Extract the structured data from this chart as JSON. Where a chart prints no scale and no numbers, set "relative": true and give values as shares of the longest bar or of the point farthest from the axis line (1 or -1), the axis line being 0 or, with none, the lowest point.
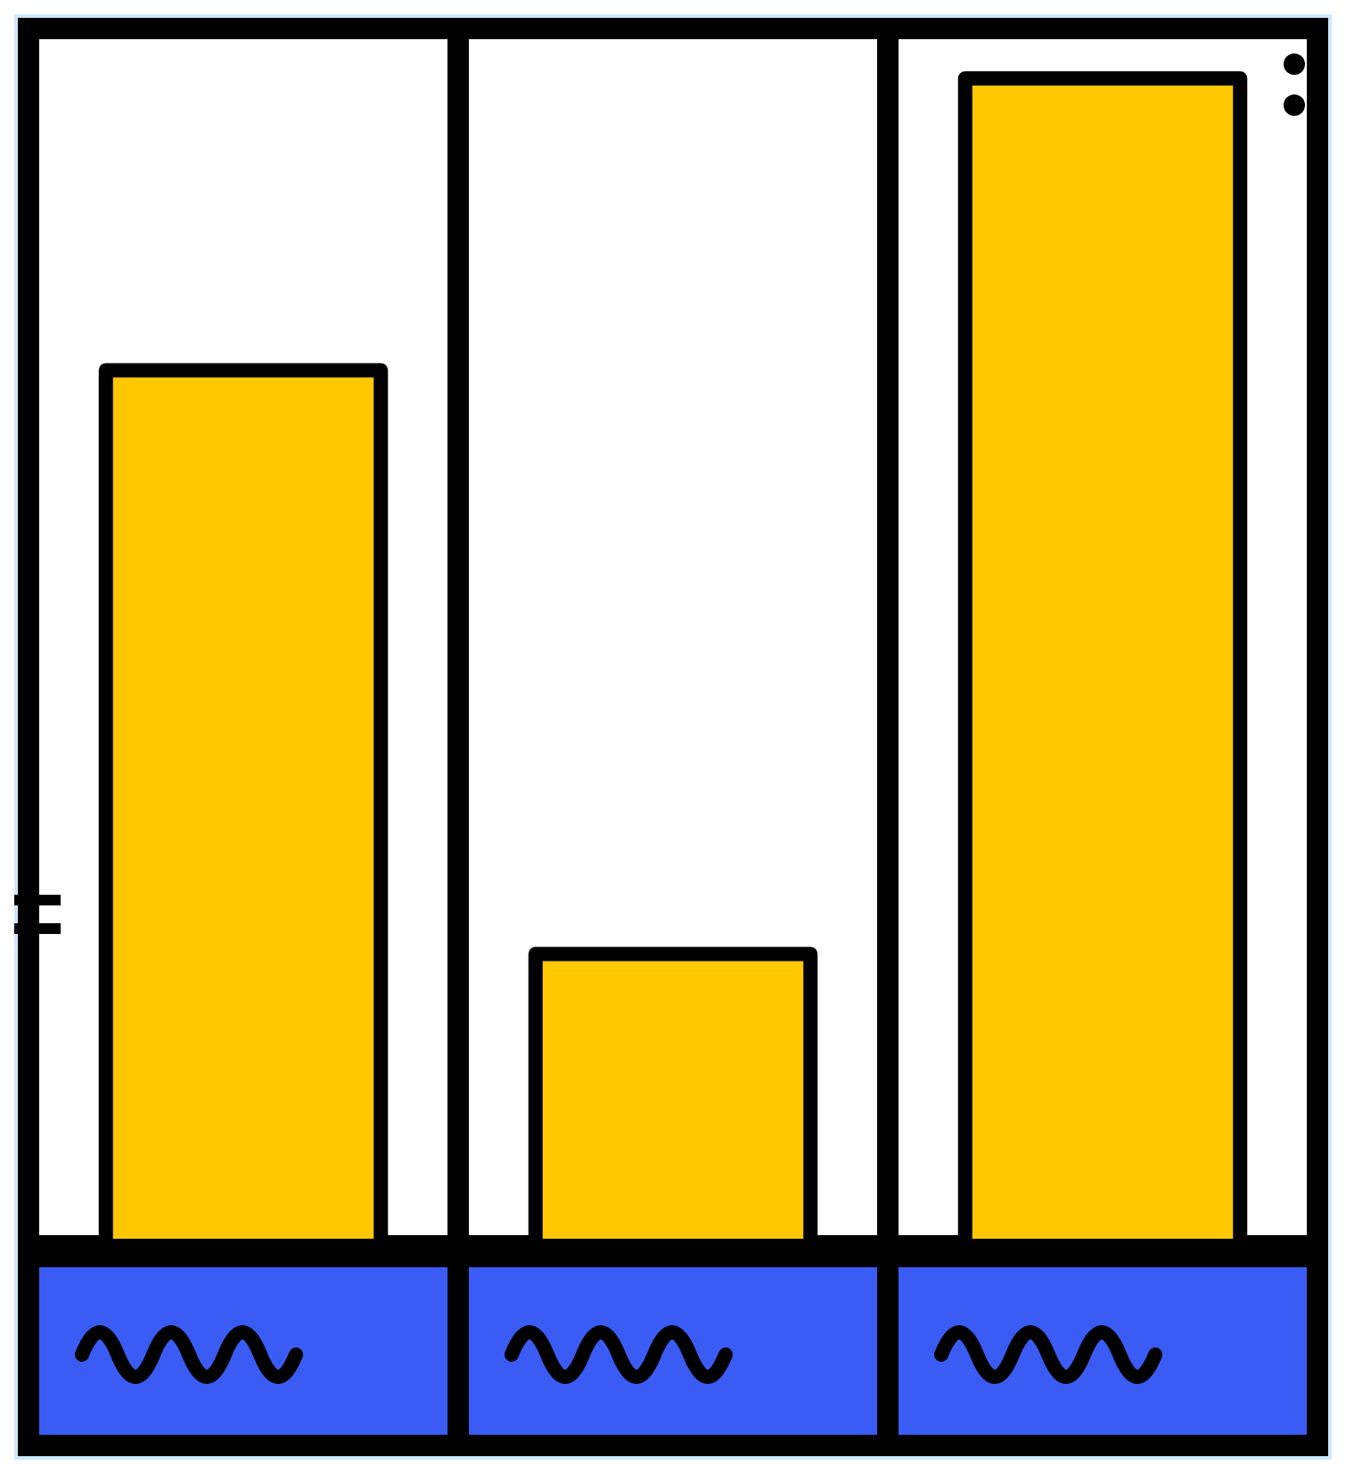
{
  "chart_data": {
    "type": "bar",
    "relative": true,
    "categories": [
      null,
      null,
      null
    ],
    "values": [
      0.75,
      0.25,
      1
    ],
    "color": "#ffc800"
  }
}
